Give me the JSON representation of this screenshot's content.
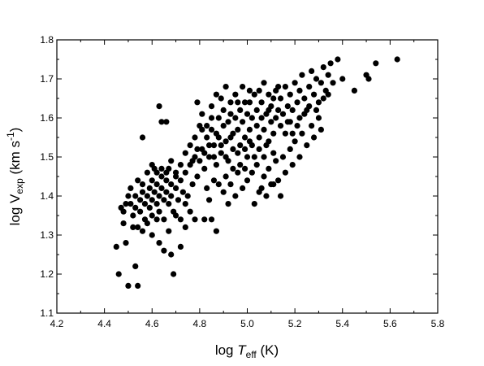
{
  "chart_data": {
    "type": "scatter",
    "title": "",
    "xlabel": {
      "pre": "log ",
      "main": "T",
      "sub": "eff",
      "post": " (K)"
    },
    "ylabel": {
      "pre": "log V",
      "sub": "exp",
      "post": " (km s",
      "sup": "-1",
      "end": ")"
    },
    "xlim": [
      4.2,
      5.8
    ],
    "ylim": [
      1.1,
      1.8
    ],
    "x_ticks": [
      "4.2",
      "4.4",
      "4.6",
      "4.8",
      "5.0",
      "5.2",
      "5.4",
      "5.6",
      "5.8"
    ],
    "y_ticks": [
      "1.1",
      "1.2",
      "1.3",
      "1.4",
      "1.5",
      "1.6",
      "1.7",
      "1.8"
    ],
    "grid": false,
    "legend": "none",
    "marker_color": "#000000",
    "points": [
      [
        4.45,
        1.27
      ],
      [
        4.46,
        1.2
      ],
      [
        4.49,
        1.28
      ],
      [
        4.5,
        1.17
      ],
      [
        4.53,
        1.22
      ],
      [
        4.54,
        1.17
      ],
      [
        4.56,
        1.55
      ],
      [
        4.63,
        1.63
      ],
      [
        4.64,
        1.59
      ],
      [
        4.66,
        1.59
      ],
      [
        4.69,
        1.2
      ],
      [
        4.72,
        1.27
      ],
      [
        4.74,
        1.32
      ],
      [
        4.79,
        1.64
      ],
      [
        4.81,
        1.57
      ],
      [
        4.85,
        1.6
      ],
      [
        4.87,
        1.31
      ],
      [
        4.47,
        1.37
      ],
      [
        4.48,
        1.36
      ],
      [
        4.48,
        1.33
      ],
      [
        4.49,
        1.38
      ],
      [
        4.5,
        1.4
      ],
      [
        4.51,
        1.42
      ],
      [
        4.51,
        1.38
      ],
      [
        4.52,
        1.35
      ],
      [
        4.53,
        1.4
      ],
      [
        4.53,
        1.37
      ],
      [
        4.54,
        1.44
      ],
      [
        4.54,
        1.32
      ],
      [
        4.55,
        1.39
      ],
      [
        4.55,
        1.36
      ],
      [
        4.56,
        1.41
      ],
      [
        4.56,
        1.43
      ],
      [
        4.57,
        1.38
      ],
      [
        4.57,
        1.34
      ],
      [
        4.58,
        1.46
      ],
      [
        4.58,
        1.4
      ],
      [
        4.59,
        1.37
      ],
      [
        4.59,
        1.42
      ],
      [
        4.6,
        1.39
      ],
      [
        4.6,
        1.44
      ],
      [
        4.6,
        1.35
      ],
      [
        4.61,
        1.41
      ],
      [
        4.61,
        1.47
      ],
      [
        4.62,
        1.38
      ],
      [
        4.62,
        1.43
      ],
      [
        4.63,
        1.4
      ],
      [
        4.63,
        1.36
      ],
      [
        4.64,
        1.42
      ],
      [
        4.64,
        1.45
      ],
      [
        4.65,
        1.39
      ],
      [
        4.65,
        1.34
      ],
      [
        4.66,
        1.41
      ],
      [
        4.66,
        1.44
      ],
      [
        4.67,
        1.38
      ],
      [
        4.67,
        1.47
      ],
      [
        4.68,
        1.4
      ],
      [
        4.68,
        1.43
      ],
      [
        4.69,
        1.36
      ],
      [
        4.7,
        1.42
      ],
      [
        4.7,
        1.45
      ],
      [
        4.71,
        1.39
      ],
      [
        4.72,
        1.44
      ],
      [
        4.73,
        1.41
      ],
      [
        4.74,
        1.46
      ],
      [
        4.75,
        1.4
      ],
      [
        4.76,
        1.48
      ],
      [
        4.77,
        1.43
      ],
      [
        4.78,
        1.5
      ],
      [
        4.79,
        1.45
      ],
      [
        4.52,
        1.32
      ],
      [
        4.56,
        1.31
      ],
      [
        4.58,
        1.33
      ],
      [
        4.6,
        1.3
      ],
      [
        4.62,
        1.34
      ],
      [
        4.63,
        1.28
      ],
      [
        4.65,
        1.26
      ],
      [
        4.67,
        1.31
      ],
      [
        4.68,
        1.25
      ],
      [
        4.7,
        1.35
      ],
      [
        4.72,
        1.34
      ],
      [
        4.74,
        1.38
      ],
      [
        4.76,
        1.36
      ],
      [
        4.78,
        1.34
      ],
      [
        4.82,
        1.34
      ],
      [
        4.85,
        1.34
      ],
      [
        4.6,
        1.48
      ],
      [
        4.62,
        1.46
      ],
      [
        4.64,
        1.47
      ],
      [
        4.66,
        1.46
      ],
      [
        4.68,
        1.49
      ],
      [
        4.7,
        1.46
      ],
      [
        4.72,
        1.48
      ],
      [
        4.74,
        1.51
      ],
      [
        4.76,
        1.53
      ],
      [
        4.78,
        1.55
      ],
      [
        4.8,
        1.58
      ],
      [
        4.81,
        1.52
      ],
      [
        4.82,
        1.47
      ],
      [
        4.83,
        1.55
      ],
      [
        4.84,
        1.5
      ],
      [
        4.85,
        1.57
      ],
      [
        4.86,
        1.53
      ],
      [
        4.87,
        1.48
      ],
      [
        4.88,
        1.6
      ],
      [
        4.88,
        1.55
      ],
      [
        4.89,
        1.51
      ],
      [
        4.9,
        1.58
      ],
      [
        4.9,
        1.62
      ],
      [
        4.91,
        1.54
      ],
      [
        4.92,
        1.49
      ],
      [
        4.92,
        1.59
      ],
      [
        4.93,
        1.64
      ],
      [
        4.94,
        1.56
      ],
      [
        4.94,
        1.52
      ],
      [
        4.95,
        1.6
      ],
      [
        4.95,
        1.66
      ],
      [
        4.96,
        1.57
      ],
      [
        4.97,
        1.53
      ],
      [
        4.97,
        1.62
      ],
      [
        4.98,
        1.59
      ],
      [
        4.98,
        1.68
      ],
      [
        4.99,
        1.55
      ],
      [
        5.0,
        1.61
      ],
      [
        5.0,
        1.5
      ],
      [
        5.01,
        1.64
      ],
      [
        5.01,
        1.57
      ],
      [
        5.02,
        1.6
      ],
      [
        5.02,
        1.53
      ],
      [
        5.03,
        1.66
      ],
      [
        5.04,
        1.58
      ],
      [
        5.04,
        1.62
      ],
      [
        5.05,
        1.55
      ],
      [
        5.06,
        1.6
      ],
      [
        5.06,
        1.64
      ],
      [
        5.07,
        1.57
      ],
      [
        5.08,
        1.61
      ],
      [
        5.08,
        1.53
      ],
      [
        5.09,
        1.66
      ],
      [
        5.1,
        1.59
      ],
      [
        5.1,
        1.63
      ],
      [
        5.11,
        1.56
      ],
      [
        5.12,
        1.6
      ],
      [
        5.12,
        1.67
      ],
      [
        5.13,
        1.62
      ],
      [
        5.14,
        1.58
      ],
      [
        5.14,
        1.65
      ],
      [
        5.15,
        1.61
      ],
      [
        5.16,
        1.56
      ],
      [
        5.16,
        1.68
      ],
      [
        5.17,
        1.63
      ],
      [
        5.18,
        1.59
      ],
      [
        5.18,
        1.66
      ],
      [
        5.19,
        1.62
      ],
      [
        5.2,
        1.69
      ],
      [
        5.21,
        1.64
      ],
      [
        5.22,
        1.6
      ],
      [
        5.22,
        1.67
      ],
      [
        5.23,
        1.71
      ],
      [
        5.24,
        1.65
      ],
      [
        5.25,
        1.62
      ],
      [
        5.26,
        1.68
      ],
      [
        5.27,
        1.72
      ],
      [
        5.28,
        1.66
      ],
      [
        5.29,
        1.7
      ],
      [
        5.3,
        1.64
      ],
      [
        5.31,
        1.69
      ],
      [
        5.32,
        1.73
      ],
      [
        5.33,
        1.67
      ],
      [
        5.34,
        1.71
      ],
      [
        5.35,
        1.74
      ],
      [
        5.36,
        1.69
      ],
      [
        5.38,
        1.75
      ],
      [
        5.4,
        1.7
      ],
      [
        5.45,
        1.67
      ],
      [
        5.5,
        1.71
      ],
      [
        5.51,
        1.7
      ],
      [
        5.54,
        1.74
      ],
      [
        5.63,
        1.75
      ],
      [
        4.83,
        1.42
      ],
      [
        4.84,
        1.39
      ],
      [
        4.86,
        1.44
      ],
      [
        4.88,
        1.43
      ],
      [
        4.9,
        1.41
      ],
      [
        4.91,
        1.45
      ],
      [
        4.92,
        1.38
      ],
      [
        4.93,
        1.43
      ],
      [
        4.95,
        1.4
      ],
      [
        4.96,
        1.46
      ],
      [
        4.98,
        1.42
      ],
      [
        4.99,
        1.47
      ],
      [
        5.0,
        1.44
      ],
      [
        5.02,
        1.46
      ],
      [
        5.04,
        1.48
      ],
      [
        5.06,
        1.42
      ],
      [
        5.07,
        1.45
      ],
      [
        5.09,
        1.47
      ],
      [
        5.1,
        1.43
      ],
      [
        5.12,
        1.49
      ],
      [
        5.13,
        1.44
      ],
      [
        5.15,
        1.5
      ],
      [
        5.16,
        1.46
      ],
      [
        5.18,
        1.52
      ],
      [
        5.19,
        1.48
      ],
      [
        5.2,
        1.54
      ],
      [
        5.22,
        1.5
      ],
      [
        5.23,
        1.56
      ],
      [
        5.25,
        1.53
      ],
      [
        5.27,
        1.58
      ],
      [
        5.28,
        1.55
      ],
      [
        5.3,
        1.6
      ],
      [
        5.31,
        1.57
      ],
      [
        5.03,
        1.38
      ],
      [
        5.05,
        1.41
      ],
      [
        5.08,
        1.4
      ],
      [
        5.11,
        1.43
      ],
      [
        5.14,
        1.4
      ],
      [
        4.81,
        1.61
      ],
      [
        4.83,
        1.58
      ],
      [
        4.85,
        1.63
      ],
      [
        4.87,
        1.66
      ],
      [
        4.89,
        1.65
      ],
      [
        4.91,
        1.68
      ],
      [
        4.93,
        1.61
      ],
      [
        4.96,
        1.64
      ],
      [
        4.99,
        1.64
      ],
      [
        5.01,
        1.67
      ],
      [
        5.05,
        1.67
      ],
      [
        5.07,
        1.69
      ],
      [
        5.09,
        1.62
      ],
      [
        5.11,
        1.65
      ],
      [
        5.13,
        1.68
      ],
      [
        5.17,
        1.59
      ],
      [
        5.19,
        1.56
      ],
      [
        5.21,
        1.58
      ],
      [
        5.24,
        1.61
      ],
      [
        5.26,
        1.63
      ],
      [
        5.29,
        1.62
      ],
      [
        5.32,
        1.65
      ],
      [
        5.34,
        1.66
      ],
      [
        4.77,
        1.49
      ],
      [
        4.79,
        1.52
      ],
      [
        4.8,
        1.49
      ],
      [
        4.82,
        1.51
      ],
      [
        4.84,
        1.53
      ],
      [
        4.86,
        1.5
      ],
      [
        4.87,
        1.56
      ],
      [
        4.89,
        1.53
      ],
      [
        4.91,
        1.5
      ],
      [
        4.93,
        1.55
      ],
      [
        4.94,
        1.47
      ],
      [
        4.96,
        1.51
      ],
      [
        4.97,
        1.48
      ],
      [
        4.99,
        1.52
      ],
      [
        5.01,
        1.54
      ],
      [
        5.03,
        1.5
      ],
      [
        5.05,
        1.52
      ],
      [
        5.07,
        1.5
      ],
      [
        5.09,
        1.54
      ],
      [
        5.11,
        1.51
      ]
    ]
  }
}
